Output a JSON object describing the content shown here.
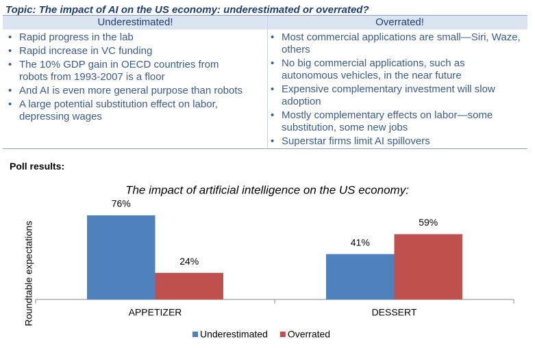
{
  "topic": "Topic: The impact of AI on the US economy: underestimated or overrated?",
  "columns": [
    {
      "heading": "Underestimated!",
      "items": [
        "Rapid progress in the lab",
        "Rapid increase in VC funding",
        "The 10% GDP gain in OECD countries from robots from 1993-2007 is a floor",
        "And AI is even more general purpose than robots",
        "A large potential substitution effect on labor, depressing wages"
      ]
    },
    {
      "heading": "Overrated!",
      "items": [
        "Most commercial applications are small—Siri, Waze, others",
        "No big commercial applications, such as autonomous vehicles, in the near future",
        "Expensive complementary investment will slow adoption",
        "Mostly complementary effects on labor—some substitution, some new jobs",
        "Superstar firms limit AI spillovers"
      ]
    }
  ],
  "poll_label": "Poll results:",
  "chart_data": {
    "type": "bar",
    "title": "The impact of artificial intelligence on the US economy:",
    "y_label": "Roundtable expectations",
    "categories": [
      "APPETIZER",
      "DESSERT"
    ],
    "series": [
      {
        "name": "Underestimated",
        "color": "#4f81bd",
        "values": [
          76,
          41
        ],
        "value_labels": [
          "76%",
          "41%"
        ]
      },
      {
        "name": "Overrated",
        "color": "#c0504d",
        "values": [
          24,
          59
        ],
        "value_labels": [
          "24%",
          "59%"
        ]
      }
    ],
    "ylim": [
      0,
      80
    ],
    "legend": "bottom"
  }
}
